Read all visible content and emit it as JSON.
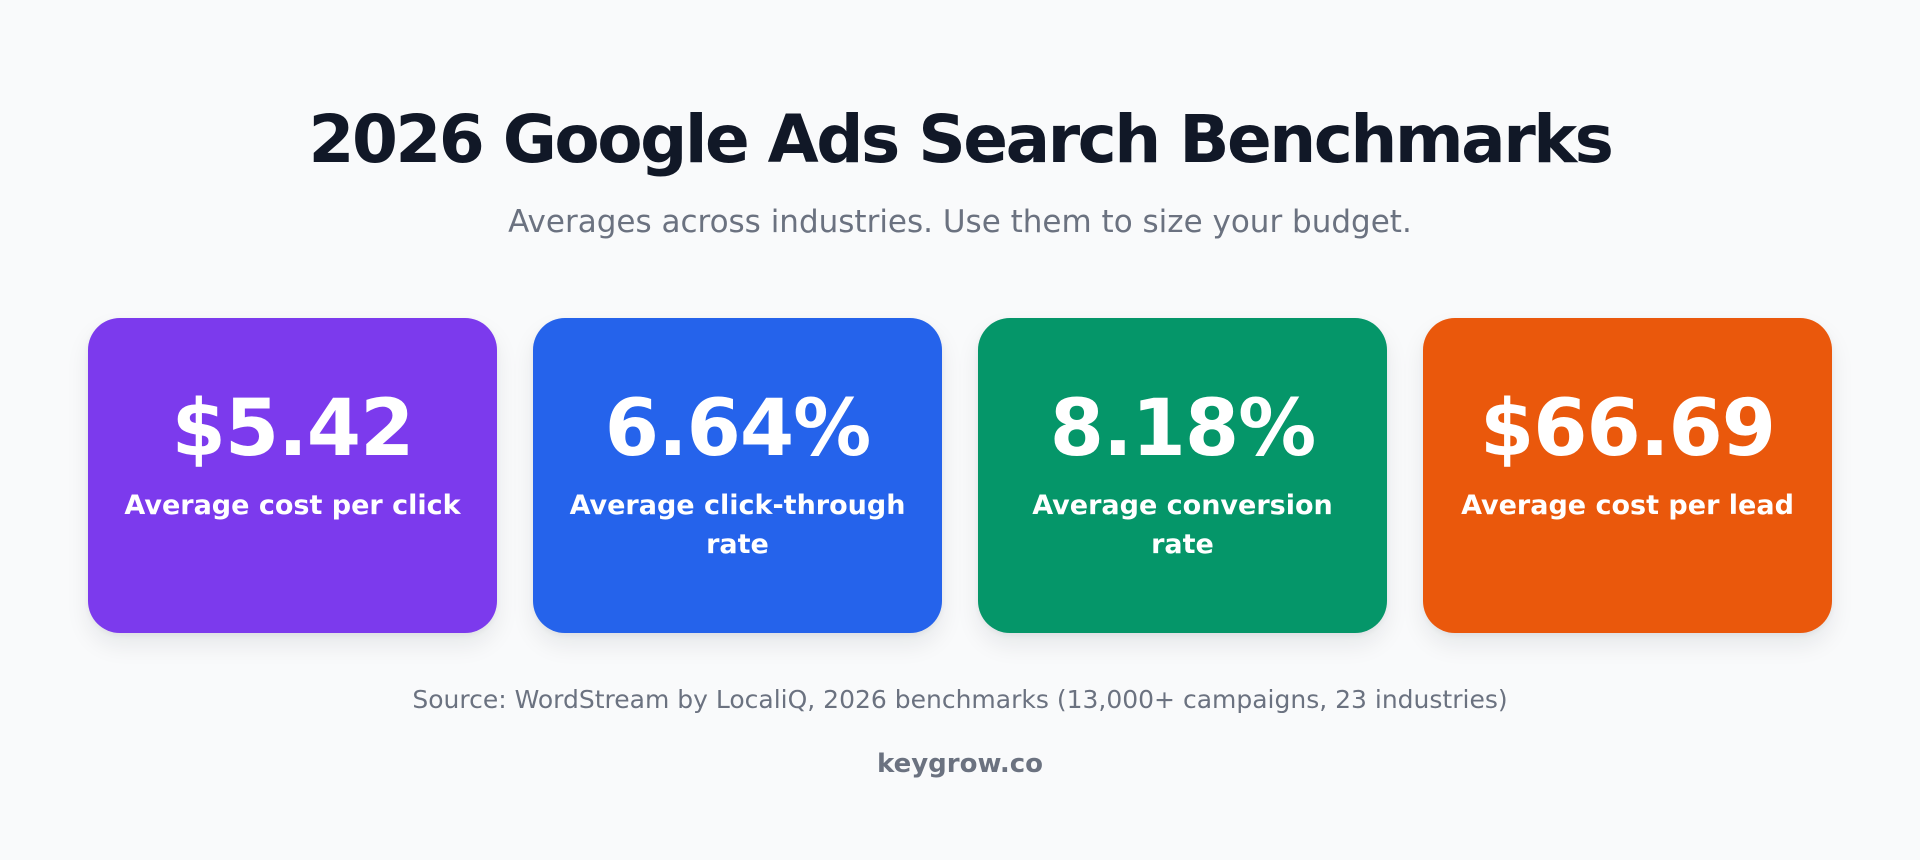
{
  "header": {
    "title": "2026 Google Ads Search Benchmarks",
    "subtitle": "Averages across industries. Use them to size your budget."
  },
  "cards": [
    {
      "value": "$5.42",
      "label": "Average cost per click",
      "color": "#7c3aed"
    },
    {
      "value": "6.64%",
      "label": "Average click-through rate",
      "color": "#2563eb"
    },
    {
      "value": "8.18%",
      "label": "Average conversion rate",
      "color": "#059669"
    },
    {
      "value": "$66.69",
      "label": "Average cost per lead",
      "color": "#ea580c"
    }
  ],
  "footer": {
    "source": "Source: WordStream by LocaliQ, 2026 benchmarks (13,000+ campaigns, 23 industries)",
    "brand": "keygrow.co"
  }
}
